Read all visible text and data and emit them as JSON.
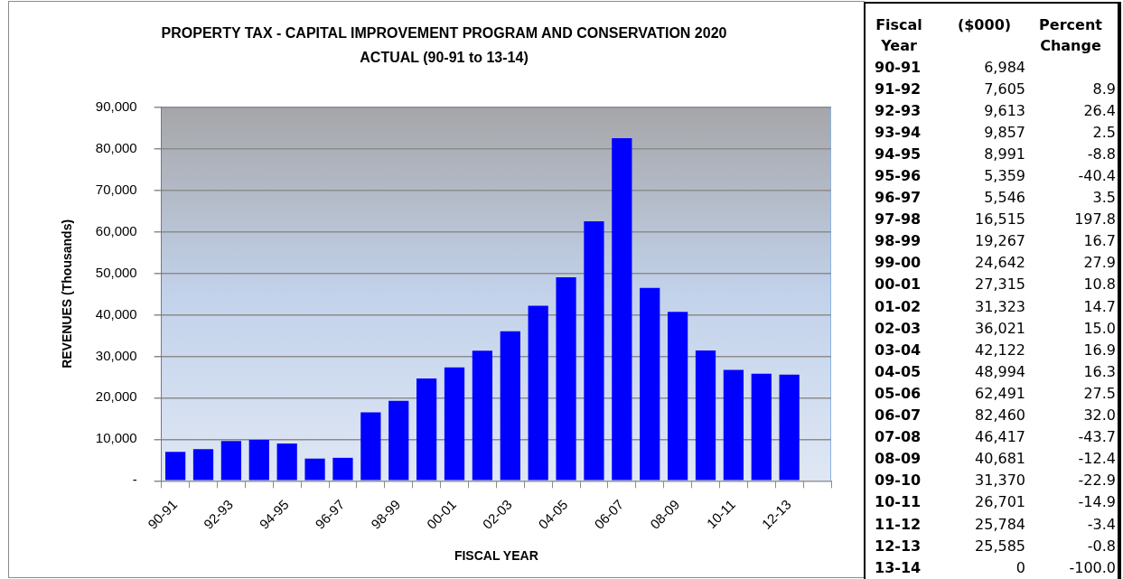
{
  "chart_data": [
    {
      "type": "bar",
      "title": "PROPERTY TAX - CAPITAL IMPROVEMENT PROGRAM AND CONSERVATION 2020",
      "subtitle": "ACTUAL (90-91 to 13-14)",
      "xlabel": "FISCAL YEAR",
      "ylabel": "REVENUES (Thousands)",
      "categories": [
        "90-91",
        null,
        "92-93",
        null,
        "94-95",
        null,
        "96-97",
        null,
        "98-99",
        null,
        "00-01",
        null,
        "02-03",
        null,
        "04-05",
        null,
        "06-07",
        null,
        "08-09",
        null,
        "10-11",
        null,
        "12-13",
        null
      ],
      "values": [
        6984,
        7605,
        9613,
        9857,
        8991,
        5359,
        5546,
        16515,
        19267,
        24642,
        27315,
        31323,
        36021,
        42122,
        48994,
        62491,
        82460,
        46417,
        40681,
        31370,
        26701,
        25784,
        25585,
        0
      ],
      "color": "#0000ff",
      "ylim": [
        0,
        90000
      ],
      "yticks": [
        {
          "value": 0,
          "label": "-"
        },
        {
          "value": 10000,
          "label": "10,000"
        },
        {
          "value": 20000,
          "label": "20,000"
        },
        {
          "value": 30000,
          "label": "30,000"
        },
        {
          "value": 40000,
          "label": "40,000"
        },
        {
          "value": 50000,
          "label": "50,000"
        },
        {
          "value": 60000,
          "label": "60,000"
        },
        {
          "value": 70000,
          "label": "70,000"
        },
        {
          "value": 80000,
          "label": "80,000"
        },
        {
          "value": 90000,
          "label": "90,000"
        }
      ],
      "grid": "y"
    },
    {
      "type": "other",
      "xlabel": "Fiscal Year",
      "categories": [
        "90-91",
        "91-92",
        "92-93",
        "93-94",
        "94-95",
        "95-96",
        "96-97",
        "97-98",
        "98-99",
        "99-00",
        "00-01",
        "01-02",
        "02-03",
        "03-04",
        "04-05",
        "05-06",
        "06-07",
        "07-08",
        "08-09",
        "09-10",
        "10-11",
        "11-12",
        "12-13",
        "13-14"
      ],
      "series": [
        {
          "name": "($000)",
          "values": [
            6984,
            7605,
            9613,
            9857,
            8991,
            5359,
            5546,
            16515,
            19267,
            24642,
            27315,
            31323,
            36021,
            42122,
            48994,
            62491,
            82460,
            46417,
            40681,
            31370,
            26701,
            25784,
            25585,
            0
          ],
          "value_labels": [
            "6,984",
            "7,605",
            "9,613",
            "9,857",
            "8,991",
            "5,359",
            "5,546",
            "16,515",
            "19,267",
            "24,642",
            "27,315",
            "31,323",
            "36,021",
            "42,122",
            "48,994",
            "62,491",
            "82,460",
            "46,417",
            "40,681",
            "31,370",
            "26,701",
            "25,784",
            "25,585",
            "0"
          ]
        },
        {
          "name": "Percent Change",
          "values": [
            null,
            8.9,
            26.4,
            2.5,
            -8.8,
            -40.4,
            3.5,
            197.8,
            16.7,
            27.9,
            10.8,
            14.7,
            15.0,
            16.9,
            16.3,
            27.5,
            32.0,
            -43.7,
            -12.4,
            -22.9,
            -14.9,
            -3.4,
            -0.8,
            -100.0
          ],
          "value_labels": [
            null,
            "8.9",
            "26.4",
            "2.5",
            "-8.8",
            "-40.4",
            "3.5",
            "197.8",
            "16.7",
            "27.9",
            "10.8",
            "14.7",
            "15.0",
            "16.9",
            "16.3",
            "27.5",
            "32.0",
            "-43.7",
            "-12.4",
            "-22.9",
            "-14.9",
            "-3.4",
            "-0.8",
            "-100.0"
          ]
        }
      ],
      "data_labels": true
    }
  ]
}
